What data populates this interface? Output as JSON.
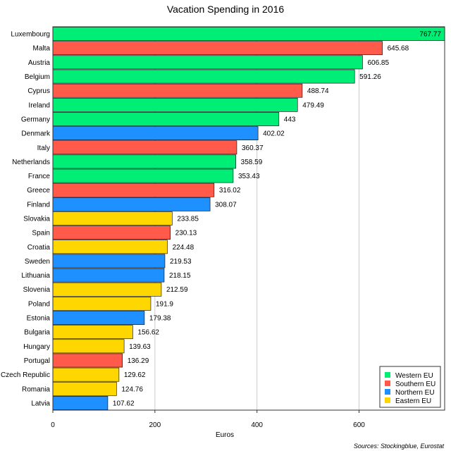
{
  "chart_data": {
    "type": "bar",
    "orientation": "horizontal",
    "title": "Vacation Spending in 2016",
    "xlabel": "Euros",
    "ylabel": "",
    "xlim": [
      0,
      767.77
    ],
    "xticks": [
      0,
      200,
      400,
      600
    ],
    "grid": true,
    "legend_position": "bottom-right",
    "source": "Sources: Stockingblue, Eurostat",
    "groups": [
      {
        "name": "Western EU",
        "color": "#00ee76"
      },
      {
        "name": "Southern EU",
        "color": "#ff5a4a"
      },
      {
        "name": "Northern EU",
        "color": "#1e90ff"
      },
      {
        "name": "Eastern EU",
        "color": "#ffd700"
      }
    ],
    "categories": [
      "Luxembourg",
      "Malta",
      "Austria",
      "Belgium",
      "Cyprus",
      "Ireland",
      "Germany",
      "Denmark",
      "Italy",
      "Netherlands",
      "France",
      "Greece",
      "Finland",
      "Slovakia",
      "Spain",
      "Croatia",
      "Sweden",
      "Lithuania",
      "Slovenia",
      "Poland",
      "Estonia",
      "Bulgaria",
      "Hungary",
      "Portugal",
      "Czech Republic",
      "Romania",
      "Latvia"
    ],
    "values": [
      767.77,
      645.68,
      606.85,
      591.26,
      488.74,
      479.49,
      443,
      402.02,
      360.37,
      358.59,
      353.43,
      316.02,
      308.07,
      233.85,
      230.13,
      224.48,
      219.53,
      218.15,
      212.59,
      191.9,
      179.38,
      156.62,
      139.63,
      136.29,
      129.62,
      124.76,
      107.62
    ],
    "value_labels": [
      "767.77",
      "645.68",
      "606.85",
      "591.26",
      "488.74",
      "479.49",
      "443",
      "402.02",
      "360.37",
      "358.59",
      "353.43",
      "316.02",
      "308.07",
      "233.85",
      "230.13",
      "224.48",
      "219.53",
      "218.15",
      "212.59",
      "191.9",
      "179.38",
      "156.62",
      "139.63",
      "136.29",
      "129.62",
      "124.76",
      "107.62"
    ],
    "bar_groups": [
      "Western EU",
      "Southern EU",
      "Western EU",
      "Western EU",
      "Southern EU",
      "Western EU",
      "Western EU",
      "Northern EU",
      "Southern EU",
      "Western EU",
      "Western EU",
      "Southern EU",
      "Northern EU",
      "Eastern EU",
      "Southern EU",
      "Eastern EU",
      "Northern EU",
      "Northern EU",
      "Eastern EU",
      "Eastern EU",
      "Northern EU",
      "Eastern EU",
      "Eastern EU",
      "Southern EU",
      "Eastern EU",
      "Eastern EU",
      "Northern EU"
    ]
  }
}
